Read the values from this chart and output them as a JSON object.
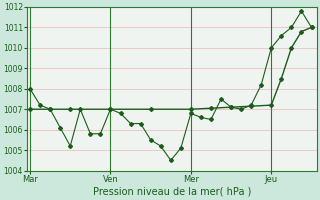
{
  "title": "",
  "xlabel": "Pression niveau de la mer( hPa )",
  "ylabel": "",
  "bg_color": "#cce8dc",
  "plot_bg_color": "#f0f4f0",
  "grid_color": "#e8b8b8",
  "line_color": "#1a5c1a",
  "spine_color": "#2d7a2d",
  "ylim": [
    1004,
    1012
  ],
  "yticks": [
    1004,
    1005,
    1006,
    1007,
    1008,
    1009,
    1010,
    1011,
    1012
  ],
  "xtick_labels": [
    "Mar",
    "Ven",
    "Mer",
    "Jeu"
  ],
  "xtick_positions": [
    0,
    8,
    16,
    24
  ],
  "vline_positions": [
    0,
    8,
    16,
    24
  ],
  "xlim": [
    -0.3,
    28.5
  ],
  "series1_x": [
    0,
    1,
    2,
    3,
    4,
    5,
    6,
    7,
    8,
    9,
    10,
    11,
    12,
    13,
    14,
    15,
    16,
    17,
    18,
    19,
    20,
    21,
    22,
    23,
    24,
    25,
    26,
    27,
    28
  ],
  "series1_y": [
    1008.0,
    1007.2,
    1007.0,
    1006.1,
    1005.2,
    1007.0,
    1005.8,
    1005.8,
    1007.0,
    1006.8,
    1006.3,
    1006.3,
    1005.5,
    1005.2,
    1004.5,
    1005.1,
    1006.8,
    1006.6,
    1006.5,
    1007.5,
    1007.1,
    1007.0,
    1007.2,
    1008.2,
    1010.0,
    1010.6,
    1011.0,
    1011.8,
    1011.0
  ],
  "series2_x": [
    0,
    2,
    4,
    8,
    12,
    16,
    18,
    20,
    22,
    24,
    25,
    26,
    27,
    28
  ],
  "series2_y": [
    1007.0,
    1007.0,
    1007.0,
    1007.0,
    1007.0,
    1007.0,
    1007.05,
    1007.1,
    1007.15,
    1007.2,
    1008.5,
    1010.0,
    1010.8,
    1011.0
  ]
}
